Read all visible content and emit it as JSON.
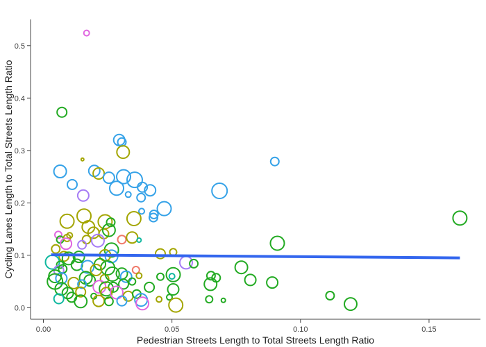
{
  "chart_data": {
    "type": "scatter",
    "xlabel": "Pedestrian Streets Length to Total Streets Length Ratio",
    "ylabel": "Cycling Lanes Length to Total Streets Length Ratio",
    "xlim": [
      -0.005,
      0.17
    ],
    "ylim": [
      -0.022,
      0.55
    ],
    "x_ticks": [
      {
        "value": 0.0,
        "label": "0.00"
      },
      {
        "value": 0.05,
        "label": "0.05"
      },
      {
        "value": 0.1,
        "label": "0.10"
      },
      {
        "value": 0.15,
        "label": "0.15"
      }
    ],
    "y_ticks": [
      {
        "value": 0.0,
        "label": "0.0"
      },
      {
        "value": 0.1,
        "label": "0.1"
      },
      {
        "value": 0.2,
        "label": "0.2"
      },
      {
        "value": 0.3,
        "label": "0.3"
      },
      {
        "value": 0.4,
        "label": "0.4"
      },
      {
        "value": 0.5,
        "label": "0.5"
      }
    ],
    "grid": false,
    "colors": {
      "green": "#22aa22",
      "olive": "#a3a500",
      "blue": "#35a2e8",
      "purple": "#a67cf5",
      "pink": "#e066e0",
      "red": "#f07868",
      "teal": "#10b8a0",
      "trend": "#3366ee"
    },
    "trend_line": {
      "x": [
        0.003,
        0.162
      ],
      "y": [
        0.101,
        0.095
      ]
    },
    "points": [
      {
        "x": 0.0168,
        "y": 0.524,
        "r": 4,
        "c": "pink"
      },
      {
        "x": 0.0072,
        "y": 0.373,
        "r": 7,
        "c": "green"
      },
      {
        "x": 0.0295,
        "y": 0.32,
        "r": 8,
        "c": "blue"
      },
      {
        "x": 0.0305,
        "y": 0.316,
        "r": 6,
        "c": "blue"
      },
      {
        "x": 0.031,
        "y": 0.297,
        "r": 9,
        "c": "olive"
      },
      {
        "x": 0.09,
        "y": 0.279,
        "r": 6,
        "c": "blue"
      },
      {
        "x": 0.0152,
        "y": 0.283,
        "r": 2,
        "c": "olive"
      },
      {
        "x": 0.0065,
        "y": 0.26,
        "r": 9,
        "c": "blue"
      },
      {
        "x": 0.0198,
        "y": 0.261,
        "r": 8,
        "c": "blue"
      },
      {
        "x": 0.0215,
        "y": 0.256,
        "r": 8,
        "c": "olive"
      },
      {
        "x": 0.0255,
        "y": 0.248,
        "r": 8,
        "c": "blue"
      },
      {
        "x": 0.0312,
        "y": 0.25,
        "r": 10,
        "c": "blue"
      },
      {
        "x": 0.0355,
        "y": 0.244,
        "r": 11,
        "c": "blue"
      },
      {
        "x": 0.0112,
        "y": 0.235,
        "r": 7,
        "c": "blue"
      },
      {
        "x": 0.0285,
        "y": 0.228,
        "r": 10,
        "c": "blue"
      },
      {
        "x": 0.0385,
        "y": 0.23,
        "r": 7,
        "c": "blue"
      },
      {
        "x": 0.0415,
        "y": 0.224,
        "r": 8,
        "c": "blue"
      },
      {
        "x": 0.0685,
        "y": 0.223,
        "r": 11,
        "c": "blue"
      },
      {
        "x": 0.0155,
        "y": 0.214,
        "r": 8,
        "c": "purple"
      },
      {
        "x": 0.033,
        "y": 0.216,
        "r": 4,
        "c": "blue"
      },
      {
        "x": 0.038,
        "y": 0.21,
        "r": 6,
        "c": "blue"
      },
      {
        "x": 0.047,
        "y": 0.189,
        "r": 10,
        "c": "blue"
      },
      {
        "x": 0.0382,
        "y": 0.184,
        "r": 4,
        "c": "blue"
      },
      {
        "x": 0.043,
        "y": 0.178,
        "r": 6,
        "c": "blue"
      },
      {
        "x": 0.0428,
        "y": 0.172,
        "r": 6,
        "c": "blue"
      },
      {
        "x": 0.0158,
        "y": 0.175,
        "r": 10,
        "c": "olive"
      },
      {
        "x": 0.0352,
        "y": 0.17,
        "r": 10,
        "c": "olive"
      },
      {
        "x": 0.162,
        "y": 0.171,
        "r": 10,
        "c": "green"
      },
      {
        "x": 0.0092,
        "y": 0.165,
        "r": 10,
        "c": "olive"
      },
      {
        "x": 0.024,
        "y": 0.164,
        "r": 10,
        "c": "olive"
      },
      {
        "x": 0.0262,
        "y": 0.163,
        "r": 6,
        "c": "green"
      },
      {
        "x": 0.0175,
        "y": 0.154,
        "r": 9,
        "c": "olive"
      },
      {
        "x": 0.0195,
        "y": 0.143,
        "r": 8,
        "c": "olive"
      },
      {
        "x": 0.0235,
        "y": 0.141,
        "r": 7,
        "c": "olive"
      },
      {
        "x": 0.0255,
        "y": 0.148,
        "r": 9,
        "c": "green"
      },
      {
        "x": 0.0058,
        "y": 0.139,
        "r": 5,
        "c": "pink"
      },
      {
        "x": 0.0065,
        "y": 0.13,
        "r": 5,
        "c": "green"
      },
      {
        "x": 0.0092,
        "y": 0.133,
        "r": 5,
        "c": "olive"
      },
      {
        "x": 0.0102,
        "y": 0.138,
        "r": 4,
        "c": "olive"
      },
      {
        "x": 0.0168,
        "y": 0.13,
        "r": 6,
        "c": "olive"
      },
      {
        "x": 0.0212,
        "y": 0.128,
        "r": 9,
        "c": "purple"
      },
      {
        "x": 0.0305,
        "y": 0.13,
        "r": 6,
        "c": "red"
      },
      {
        "x": 0.0345,
        "y": 0.134,
        "r": 8,
        "c": "olive"
      },
      {
        "x": 0.0372,
        "y": 0.129,
        "r": 3,
        "c": "teal"
      },
      {
        "x": 0.0088,
        "y": 0.122,
        "r": 8,
        "c": "pink"
      },
      {
        "x": 0.015,
        "y": 0.12,
        "r": 6,
        "c": "purple"
      },
      {
        "x": 0.0048,
        "y": 0.112,
        "r": 6,
        "c": "olive"
      },
      {
        "x": 0.0265,
        "y": 0.11,
        "r": 10,
        "c": "green"
      },
      {
        "x": 0.0265,
        "y": 0.098,
        "r": 9,
        "c": "blue"
      },
      {
        "x": 0.024,
        "y": 0.1,
        "r": 8,
        "c": "olive"
      },
      {
        "x": 0.0455,
        "y": 0.103,
        "r": 7,
        "c": "olive"
      },
      {
        "x": 0.0505,
        "y": 0.106,
        "r": 5,
        "c": "olive"
      },
      {
        "x": 0.091,
        "y": 0.123,
        "r": 10,
        "c": "green"
      },
      {
        "x": 0.008,
        "y": 0.098,
        "r": 7,
        "c": "olive"
      },
      {
        "x": 0.0098,
        "y": 0.094,
        "r": 9,
        "c": "green"
      },
      {
        "x": 0.0138,
        "y": 0.097,
        "r": 8,
        "c": "green"
      },
      {
        "x": 0.0035,
        "y": 0.087,
        "r": 10,
        "c": "teal"
      },
      {
        "x": 0.0065,
        "y": 0.082,
        "r": 5,
        "c": "green"
      },
      {
        "x": 0.013,
        "y": 0.082,
        "r": 8,
        "c": "green"
      },
      {
        "x": 0.0172,
        "y": 0.078,
        "r": 9,
        "c": "blue"
      },
      {
        "x": 0.022,
        "y": 0.083,
        "r": 8,
        "c": "green"
      },
      {
        "x": 0.025,
        "y": 0.076,
        "r": 10,
        "c": "green"
      },
      {
        "x": 0.0555,
        "y": 0.086,
        "r": 9,
        "c": "purple"
      },
      {
        "x": 0.0585,
        "y": 0.084,
        "r": 6,
        "c": "green"
      },
      {
        "x": 0.006,
        "y": 0.071,
        "r": 7,
        "c": "purple"
      },
      {
        "x": 0.0075,
        "y": 0.074,
        "r": 6,
        "c": "green"
      },
      {
        "x": 0.0205,
        "y": 0.072,
        "r": 8,
        "c": "olive"
      },
      {
        "x": 0.0305,
        "y": 0.065,
        "r": 8,
        "c": "green"
      },
      {
        "x": 0.036,
        "y": 0.072,
        "r": 5,
        "c": "red"
      },
      {
        "x": 0.077,
        "y": 0.077,
        "r": 9,
        "c": "green"
      },
      {
        "x": 0.0045,
        "y": 0.06,
        "r": 9,
        "c": "green"
      },
      {
        "x": 0.007,
        "y": 0.056,
        "r": 8,
        "c": "blue"
      },
      {
        "x": 0.0165,
        "y": 0.057,
        "r": 9,
        "c": "green"
      },
      {
        "x": 0.018,
        "y": 0.052,
        "r": 8,
        "c": "green"
      },
      {
        "x": 0.0238,
        "y": 0.055,
        "r": 6,
        "c": "olive"
      },
      {
        "x": 0.0268,
        "y": 0.064,
        "r": 10,
        "c": "green"
      },
      {
        "x": 0.0322,
        "y": 0.059,
        "r": 8,
        "c": "blue"
      },
      {
        "x": 0.0345,
        "y": 0.05,
        "r": 5,
        "c": "green"
      },
      {
        "x": 0.0372,
        "y": 0.061,
        "r": 4,
        "c": "olive"
      },
      {
        "x": 0.0455,
        "y": 0.059,
        "r": 5,
        "c": "green"
      },
      {
        "x": 0.0505,
        "y": 0.063,
        "r": 10,
        "c": "green"
      },
      {
        "x": 0.05,
        "y": 0.06,
        "r": 4,
        "c": "teal"
      },
      {
        "x": 0.0652,
        "y": 0.061,
        "r": 6,
        "c": "green"
      },
      {
        "x": 0.0672,
        "y": 0.057,
        "r": 6,
        "c": "green"
      },
      {
        "x": 0.0805,
        "y": 0.053,
        "r": 8,
        "c": "green"
      },
      {
        "x": 0.0045,
        "y": 0.05,
        "r": 11,
        "c": "green"
      },
      {
        "x": 0.0118,
        "y": 0.047,
        "r": 8,
        "c": "olive"
      },
      {
        "x": 0.015,
        "y": 0.045,
        "r": 6,
        "c": "blue"
      },
      {
        "x": 0.0218,
        "y": 0.04,
        "r": 9,
        "c": "pink"
      },
      {
        "x": 0.0245,
        "y": 0.036,
        "r": 10,
        "c": "green"
      },
      {
        "x": 0.0272,
        "y": 0.039,
        "r": 7,
        "c": "green"
      },
      {
        "x": 0.0312,
        "y": 0.045,
        "r": 7,
        "c": "green"
      },
      {
        "x": 0.0412,
        "y": 0.039,
        "r": 7,
        "c": "green"
      },
      {
        "x": 0.0505,
        "y": 0.035,
        "r": 8,
        "c": "green"
      },
      {
        "x": 0.065,
        "y": 0.045,
        "r": 9,
        "c": "green"
      },
      {
        "x": 0.089,
        "y": 0.048,
        "r": 8,
        "c": "green"
      },
      {
        "x": 0.007,
        "y": 0.036,
        "r": 9,
        "c": "green"
      },
      {
        "x": 0.0095,
        "y": 0.028,
        "r": 8,
        "c": "green"
      },
      {
        "x": 0.011,
        "y": 0.02,
        "r": 7,
        "c": "green"
      },
      {
        "x": 0.0145,
        "y": 0.03,
        "r": 7,
        "c": "olive"
      },
      {
        "x": 0.0196,
        "y": 0.022,
        "r": 4,
        "c": "green"
      },
      {
        "x": 0.0245,
        "y": 0.028,
        "r": 8,
        "c": "olive"
      },
      {
        "x": 0.0285,
        "y": 0.029,
        "r": 9,
        "c": "pink"
      },
      {
        "x": 0.033,
        "y": 0.022,
        "r": 7,
        "c": "olive"
      },
      {
        "x": 0.0363,
        "y": 0.026,
        "r": 6,
        "c": "green"
      },
      {
        "x": 0.038,
        "y": 0.015,
        "r": 9,
        "c": "blue"
      },
      {
        "x": 0.045,
        "y": 0.016,
        "r": 4,
        "c": "olive"
      },
      {
        "x": 0.049,
        "y": 0.02,
        "r": 4,
        "c": "green"
      },
      {
        "x": 0.006,
        "y": 0.017,
        "r": 7,
        "c": "teal"
      },
      {
        "x": 0.0145,
        "y": 0.012,
        "r": 9,
        "c": "green"
      },
      {
        "x": 0.0215,
        "y": 0.013,
        "r": 8,
        "c": "olive"
      },
      {
        "x": 0.0255,
        "y": 0.012,
        "r": 6,
        "c": "green"
      },
      {
        "x": 0.0305,
        "y": 0.013,
        "r": 7,
        "c": "blue"
      },
      {
        "x": 0.0385,
        "y": 0.008,
        "r": 9,
        "c": "pink"
      },
      {
        "x": 0.0515,
        "y": 0.005,
        "r": 10,
        "c": "olive"
      },
      {
        "x": 0.0645,
        "y": 0.016,
        "r": 5,
        "c": "green"
      },
      {
        "x": 0.07,
        "y": 0.014,
        "r": 3,
        "c": "green"
      },
      {
        "x": 0.1115,
        "y": 0.023,
        "r": 6,
        "c": "green"
      },
      {
        "x": 0.1195,
        "y": 0.007,
        "r": 9,
        "c": "green"
      }
    ]
  }
}
